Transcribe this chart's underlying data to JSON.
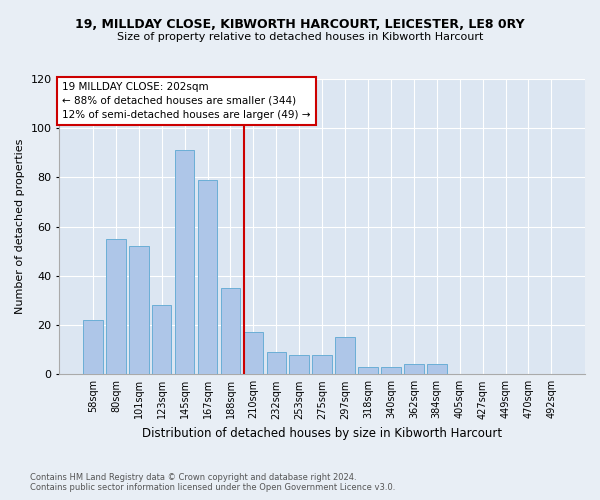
{
  "title1": "19, MILLDAY CLOSE, KIBWORTH HARCOURT, LEICESTER, LE8 0RY",
  "title2": "Size of property relative to detached houses in Kibworth Harcourt",
  "xlabel": "Distribution of detached houses by size in Kibworth Harcourt",
  "ylabel": "Number of detached properties",
  "footnote1": "Contains HM Land Registry data © Crown copyright and database right 2024.",
  "footnote2": "Contains public sector information licensed under the Open Government Licence v3.0.",
  "bar_labels": [
    "58sqm",
    "80sqm",
    "101sqm",
    "123sqm",
    "145sqm",
    "167sqm",
    "188sqm",
    "210sqm",
    "232sqm",
    "253sqm",
    "275sqm",
    "297sqm",
    "318sqm",
    "340sqm",
    "362sqm",
    "384sqm",
    "405sqm",
    "427sqm",
    "449sqm",
    "470sqm",
    "492sqm"
  ],
  "bar_values": [
    22,
    55,
    52,
    28,
    91,
    79,
    35,
    17,
    9,
    8,
    8,
    15,
    3,
    3,
    4,
    4,
    0,
    0,
    0,
    0,
    0
  ],
  "bar_color": "#aec6e8",
  "bar_edge_color": "#6baed6",
  "red_line_label": "19 MILLDAY CLOSE: 202sqm",
  "annotation_line1": "← 88% of detached houses are smaller (344)",
  "annotation_line2": "12% of semi-detached houses are larger (49) →",
  "ylim": [
    0,
    120
  ],
  "yticks": [
    0,
    20,
    40,
    60,
    80,
    100,
    120
  ],
  "property_line_color": "#cc0000",
  "annotation_box_color": "#cc0000",
  "background_color": "#e8eef5",
  "plot_bg_color": "#dce6f2",
  "red_line_index": 7.0
}
